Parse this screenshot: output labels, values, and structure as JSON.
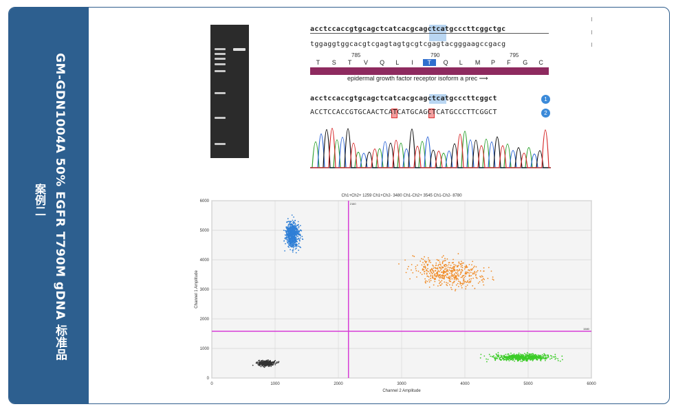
{
  "sidebar": {
    "title_line1": "GM-GDN1004A  50% EGFR T790M gDNA 标准品",
    "title_line2": "案例二"
  },
  "sequence": {
    "ref_top": "acctccaccgtgcagctcatcacgcagctcatgcccttcggctgc",
    "ref_bottom": "tggaggtggcacgtcgagtagtgcgtcgagtacgggaagccgacg",
    "positions": [
      "785",
      "790",
      "795"
    ],
    "amino_acids": [
      "T",
      "S",
      "T",
      "V",
      "Q",
      "L",
      "I",
      "T",
      "Q",
      "L",
      "M",
      "P",
      "F",
      "G",
      "C"
    ],
    "feature": "epidermal growth factor receptor isoform a prec",
    "read1": "acctccaccgtgcagctcatcacgcagctcatgcccttcggct",
    "read2": "ACCTCCACCGTGCAACTCATCATGCAGCTCATGCCCTTCGGCT",
    "read1_badge": "1",
    "read2_badge": "2"
  },
  "chart_data": {
    "type": "scatter",
    "title": "Ch1+Ch2+ 1259  Ch1+Ch2- 3480  Ch1-Ch2+ 3545  Ch1-Ch2- 8780",
    "xlabel": "Channel 2 Amplitude",
    "ylabel": "Channel 1 Amplitude",
    "xlim": [
      0,
      6000
    ],
    "ylim": [
      0,
      6000
    ],
    "x_ticks": [
      0,
      1000,
      2000,
      3000,
      4000,
      5000,
      6000
    ],
    "y_ticks": [
      0,
      1000,
      2000,
      3000,
      4000,
      5000,
      6000
    ],
    "threshold_x": 2160,
    "threshold_y": 1580,
    "threshold_x_label": "2160",
    "threshold_y_label": "1580",
    "grid": true,
    "clusters": [
      {
        "name": "Ch1+Ch2-",
        "color": "#2f7fd6",
        "center": [
          1280,
          4850
        ],
        "spread": [
          90,
          360
        ],
        "count": 600
      },
      {
        "name": "Ch1+Ch2+",
        "color": "#f08a24",
        "center": [
          3750,
          3550
        ],
        "spread": [
          450,
          380
        ],
        "count": 450
      },
      {
        "name": "Ch1-Ch2+",
        "color": "#3ccc28",
        "center": [
          4900,
          700
        ],
        "spread": [
          380,
          90
        ],
        "count": 600
      },
      {
        "name": "Ch1-Ch2-",
        "color": "#333333",
        "center": [
          850,
          500
        ],
        "spread": [
          110,
          70
        ],
        "count": 350
      }
    ]
  },
  "colors": {
    "sidebar": "#2d5f8f",
    "threshold": "#d63bd6",
    "feature_bar": "#8e2a5f",
    "highlight": "#b9d6f2"
  }
}
